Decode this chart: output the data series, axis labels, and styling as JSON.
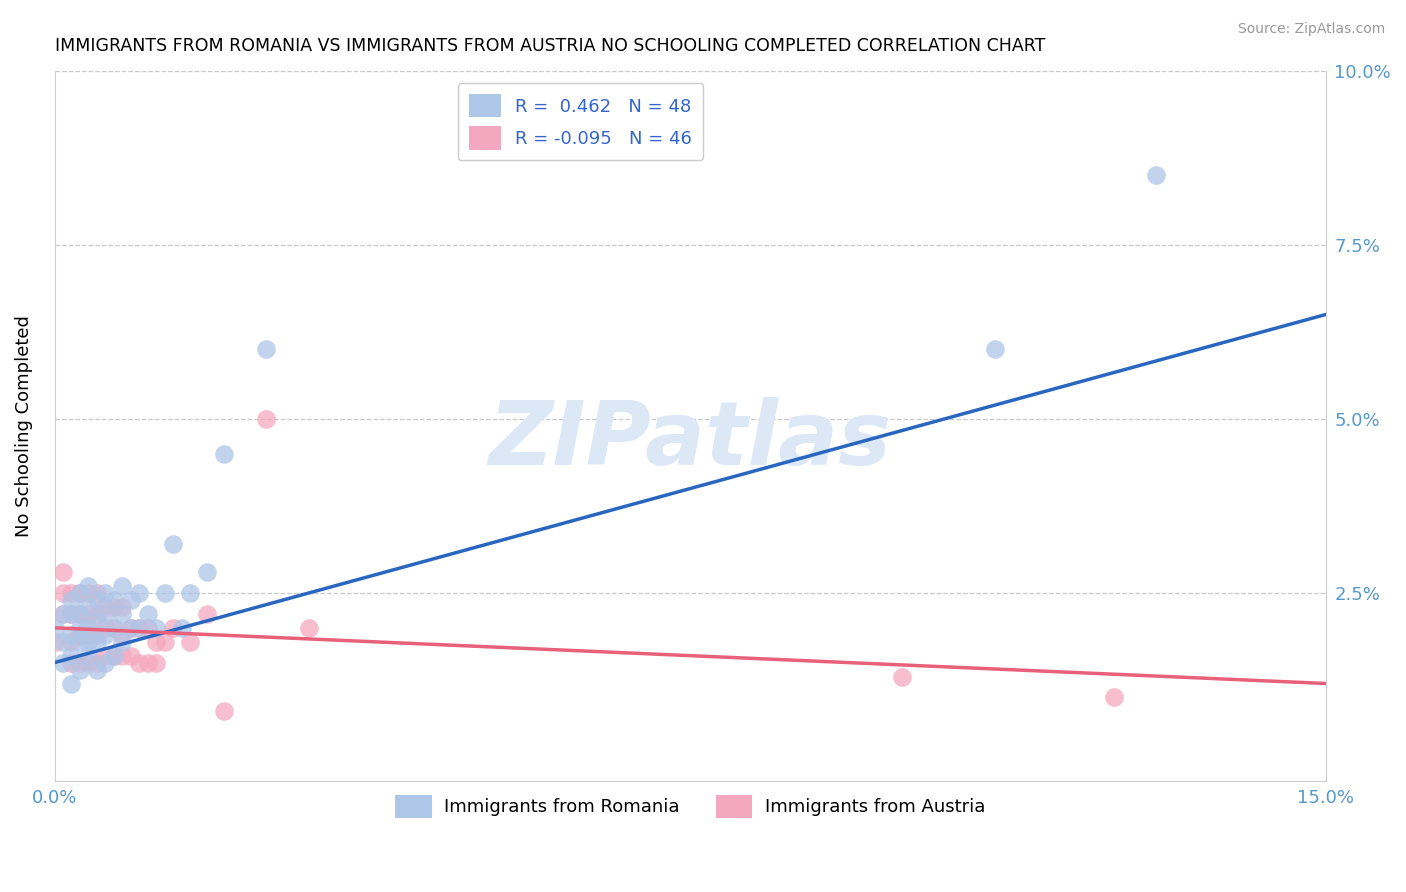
{
  "title": "IMMIGRANTS FROM ROMANIA VS IMMIGRANTS FROM AUSTRIA NO SCHOOLING COMPLETED CORRELATION CHART",
  "source": "Source: ZipAtlas.com",
  "ylabel": "No Schooling Completed",
  "xlim": [
    0.0,
    0.15
  ],
  "ylim": [
    -0.002,
    0.1
  ],
  "romania_R": 0.462,
  "romania_N": 48,
  "austria_R": -0.095,
  "austria_N": 46,
  "romania_color": "#aec6e8",
  "austria_color": "#f4a8c0",
  "romania_line_color": "#2866c0",
  "austria_line_color": "#e8607a",
  "watermark_color": "#dce8f5",
  "grid_color": "#c8c8c8",
  "tick_color": "#5599cc",
  "romania_x": [
    0.0,
    0.001,
    0.001,
    0.001,
    0.002,
    0.002,
    0.002,
    0.002,
    0.002,
    0.003,
    0.003,
    0.003,
    0.003,
    0.003,
    0.004,
    0.004,
    0.004,
    0.004,
    0.004,
    0.005,
    0.005,
    0.005,
    0.005,
    0.006,
    0.006,
    0.006,
    0.006,
    0.007,
    0.007,
    0.007,
    0.008,
    0.008,
    0.008,
    0.009,
    0.009,
    0.01,
    0.01,
    0.011,
    0.012,
    0.013,
    0.014,
    0.015,
    0.016,
    0.018,
    0.02,
    0.025,
    0.111,
    0.13
  ],
  "romania_y": [
    0.02,
    0.015,
    0.018,
    0.022,
    0.012,
    0.016,
    0.019,
    0.022,
    0.024,
    0.014,
    0.018,
    0.02,
    0.022,
    0.025,
    0.016,
    0.018,
    0.02,
    0.023,
    0.026,
    0.014,
    0.018,
    0.021,
    0.024,
    0.015,
    0.019,
    0.022,
    0.025,
    0.016,
    0.02,
    0.024,
    0.018,
    0.022,
    0.026,
    0.02,
    0.024,
    0.02,
    0.025,
    0.022,
    0.02,
    0.025,
    0.032,
    0.02,
    0.025,
    0.028,
    0.045,
    0.06,
    0.06,
    0.085
  ],
  "austria_x": [
    0.0,
    0.001,
    0.001,
    0.001,
    0.002,
    0.002,
    0.002,
    0.002,
    0.003,
    0.003,
    0.003,
    0.003,
    0.004,
    0.004,
    0.004,
    0.004,
    0.005,
    0.005,
    0.005,
    0.005,
    0.006,
    0.006,
    0.006,
    0.007,
    0.007,
    0.007,
    0.008,
    0.008,
    0.008,
    0.009,
    0.009,
    0.01,
    0.01,
    0.011,
    0.011,
    0.012,
    0.012,
    0.013,
    0.014,
    0.016,
    0.018,
    0.02,
    0.025,
    0.03,
    0.1,
    0.125
  ],
  "austria_y": [
    0.018,
    0.022,
    0.025,
    0.028,
    0.015,
    0.018,
    0.022,
    0.025,
    0.015,
    0.019,
    0.022,
    0.025,
    0.015,
    0.019,
    0.022,
    0.025,
    0.015,
    0.019,
    0.022,
    0.025,
    0.016,
    0.02,
    0.023,
    0.016,
    0.02,
    0.023,
    0.016,
    0.019,
    0.023,
    0.016,
    0.02,
    0.015,
    0.02,
    0.015,
    0.02,
    0.015,
    0.018,
    0.018,
    0.02,
    0.018,
    0.022,
    0.008,
    0.05,
    0.02,
    0.013,
    0.01
  ],
  "rom_line_x0": 0.0,
  "rom_line_y0": 0.015,
  "rom_line_x1": 0.15,
  "rom_line_y1": 0.065,
  "aut_line_x0": 0.0,
  "aut_line_y0": 0.02,
  "aut_line_x1": 0.15,
  "aut_line_y1": 0.012
}
